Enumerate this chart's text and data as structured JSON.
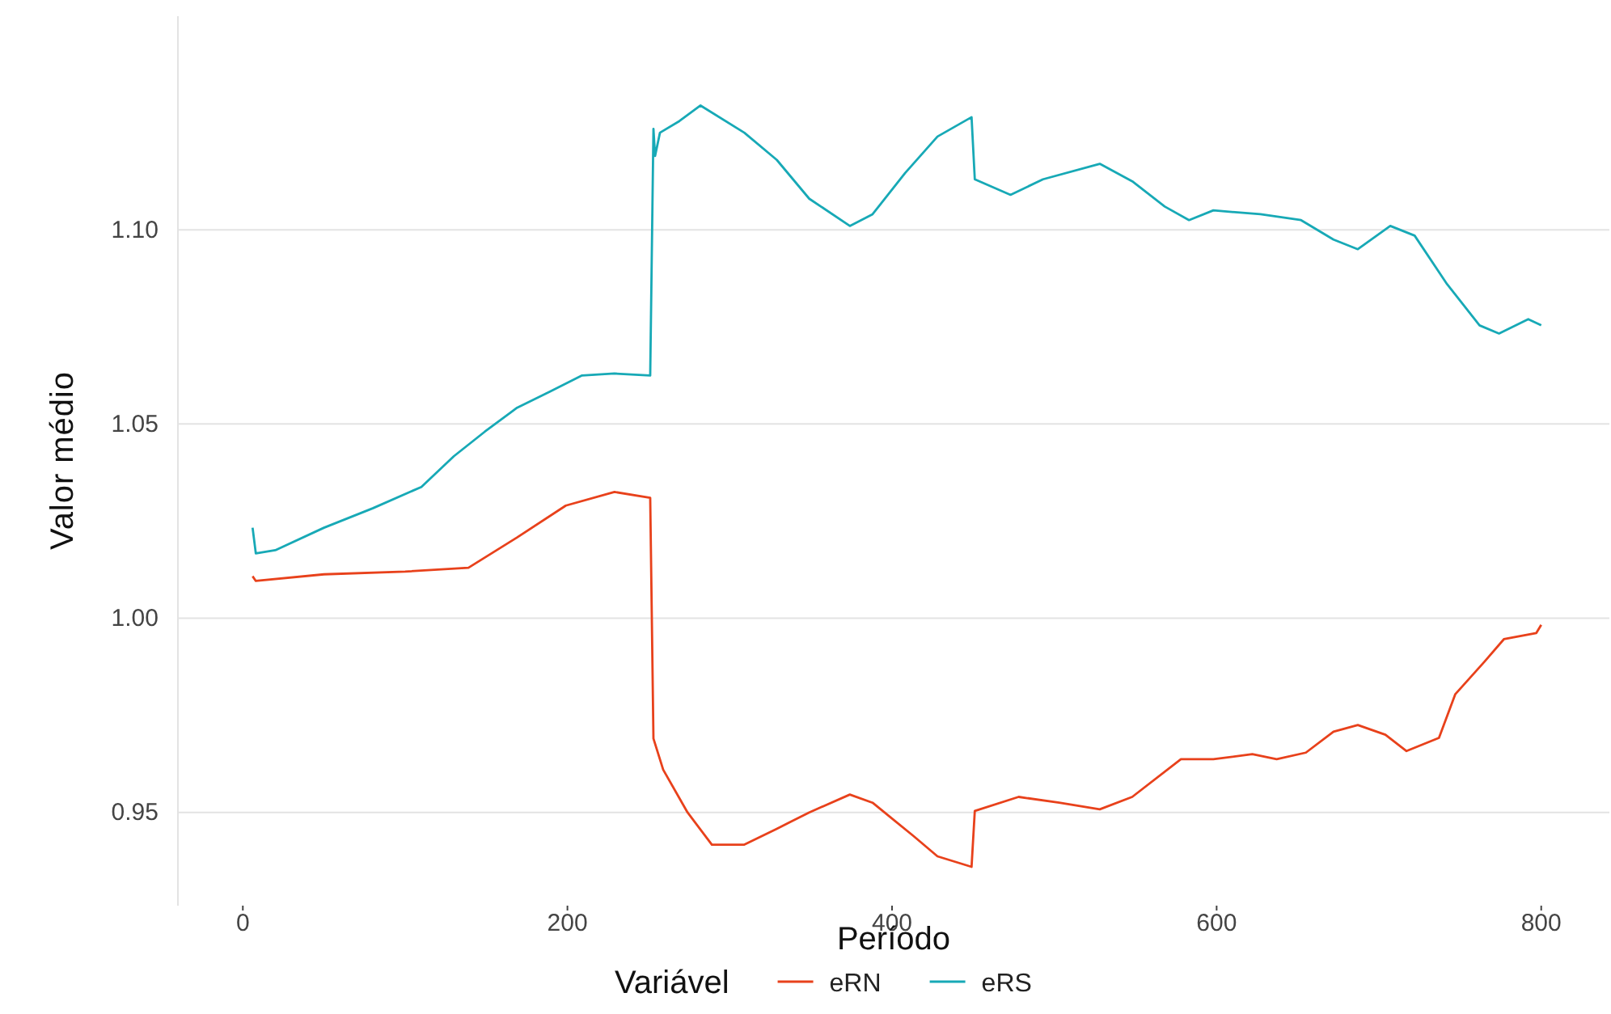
{
  "chart_data": {
    "type": "line",
    "xlabel": "Período",
    "ylabel": "Valor médio",
    "legend_title": "Variável",
    "legend": "bottom",
    "grid": "y",
    "line_style": "solid",
    "marker": "none",
    "xlim": [
      -40,
      842
    ],
    "ylim": [
      0.926,
      1.155
    ],
    "xticks": [
      0,
      200,
      400,
      600,
      800
    ],
    "yticks": [
      {
        "value": 0.95,
        "label": "0.95"
      },
      {
        "value": 1.0,
        "label": "1.00"
      },
      {
        "value": 1.05,
        "label": "1.05"
      },
      {
        "value": 1.1,
        "label": "1.10"
      }
    ],
    "series": [
      {
        "name": "eRN",
        "color": "#e8411b",
        "x": [
          6,
          8,
          50,
          100,
          139,
          169,
          199,
          229,
          251,
          253,
          259,
          274,
          289,
          309,
          329,
          349,
          374,
          388,
          413,
          428,
          449,
          451,
          478,
          503,
          528,
          548,
          578,
          598,
          622,
          637,
          655,
          672,
          687,
          704,
          717,
          737,
          747,
          765,
          777,
          797,
          800
        ],
        "values": [
          1.0108,
          1.0096,
          1.0113,
          1.012,
          1.013,
          1.0208,
          1.029,
          1.0325,
          1.031,
          0.969,
          0.961,
          0.95,
          0.9417,
          0.9417,
          0.9458,
          0.95,
          0.9546,
          0.9525,
          0.944,
          0.9387,
          0.936,
          0.9504,
          0.954,
          0.9525,
          0.9508,
          0.954,
          0.9637,
          0.9637,
          0.965,
          0.9637,
          0.9654,
          0.9708,
          0.9725,
          0.97,
          0.9658,
          0.9692,
          0.9804,
          0.9888,
          0.9946,
          0.9962,
          0.9983
        ]
      },
      {
        "name": "eRS",
        "color": "#17a9b6",
        "x": [
          6,
          8,
          20,
          50,
          80,
          110,
          130,
          149,
          169,
          189,
          209,
          229,
          251,
          253,
          254,
          257,
          269,
          282,
          309,
          329,
          349,
          374,
          388,
          408,
          428,
          449,
          451,
          473,
          493,
          528,
          548,
          568,
          583,
          598,
          627,
          652,
          672,
          687,
          707,
          722,
          742,
          762,
          774,
          792,
          800
        ],
        "values": [
          1.0233,
          1.0167,
          1.0175,
          1.0233,
          1.0283,
          1.0338,
          1.0417,
          1.048,
          1.0542,
          1.0583,
          1.0625,
          1.063,
          1.0625,
          1.126,
          1.119,
          1.125,
          1.128,
          1.132,
          1.125,
          1.118,
          1.108,
          1.101,
          1.104,
          1.1146,
          1.124,
          1.129,
          1.113,
          1.109,
          1.113,
          1.117,
          1.1125,
          1.106,
          1.1025,
          1.105,
          1.104,
          1.1025,
          1.0975,
          1.095,
          1.101,
          1.0985,
          1.086,
          1.0754,
          1.0733,
          1.077,
          1.0754
        ]
      }
    ]
  }
}
